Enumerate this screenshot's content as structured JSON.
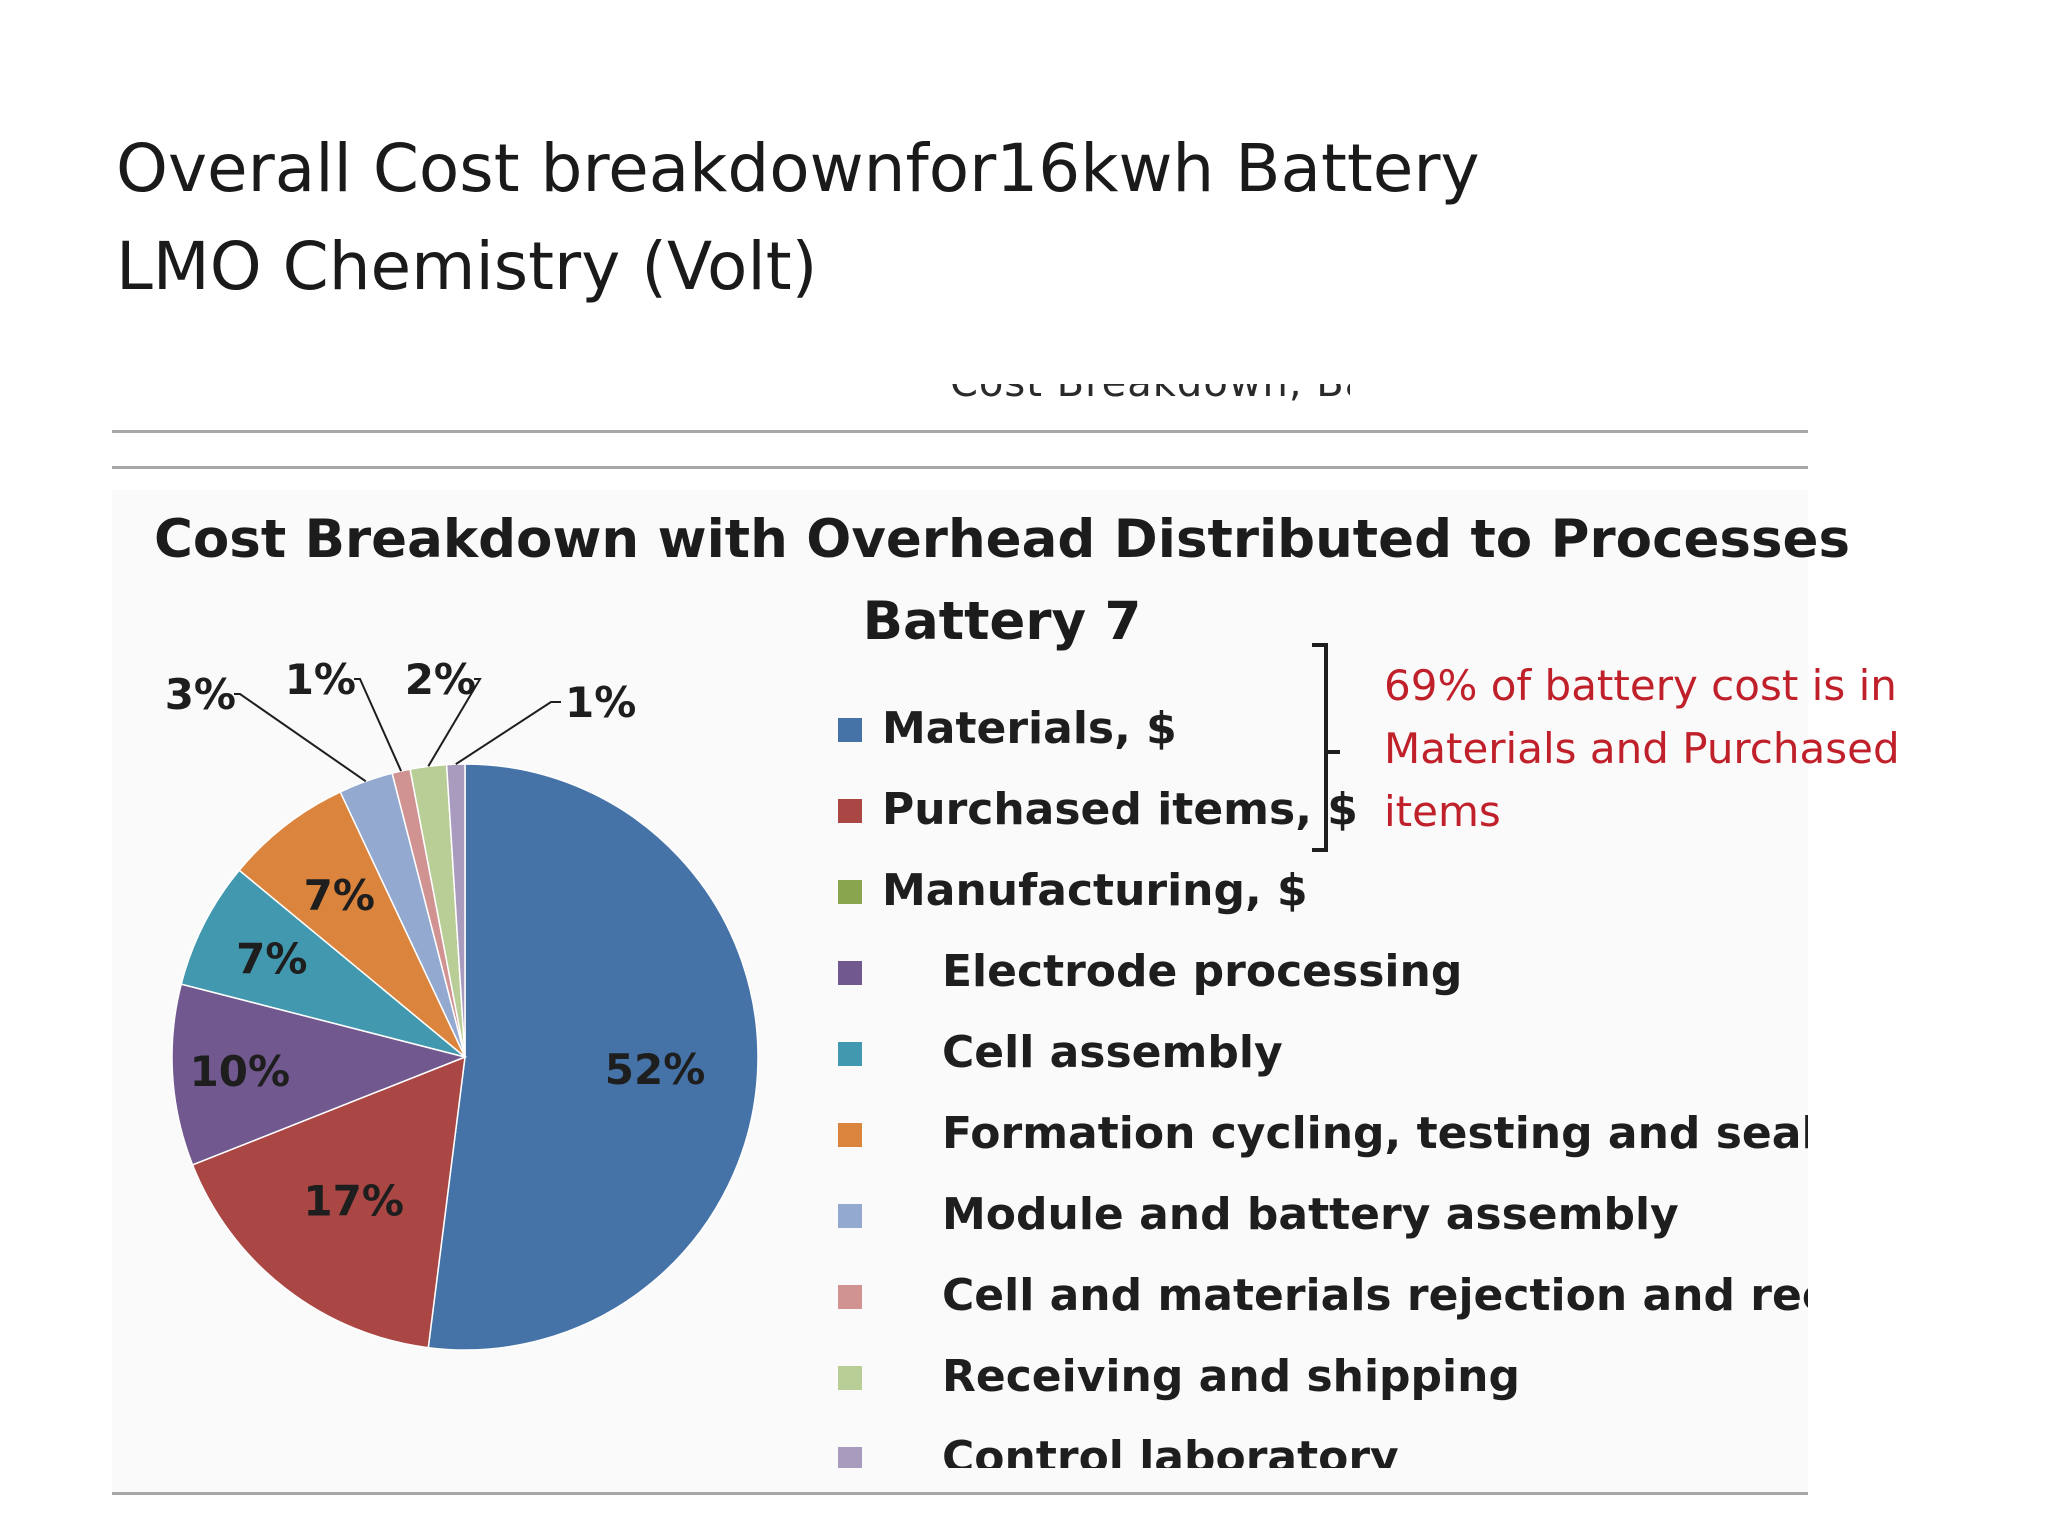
{
  "slide": {
    "title_line1": "Overall Cost breakdownfor16kwh  Battery",
    "title_line2": "LMO Chemistry (Volt)",
    "cut_text": "Cost Breakdown, Battery"
  },
  "chart_data": {
    "type": "pie",
    "title": "Cost Breakdown with Overhead Distributed to Processes",
    "subtitle": "Battery 7",
    "slices": [
      {
        "name": "Materials, $",
        "value": 52,
        "label": "52%",
        "color": "#4572a7"
      },
      {
        "name": "Purchased items, $",
        "value": 17,
        "label": "17%",
        "color": "#aa4643"
      },
      {
        "name": "Manufacturing, $",
        "value": 0,
        "label": "",
        "color": "#89a54e"
      },
      {
        "name": "Electrode processing",
        "value": 10,
        "label": "10%",
        "color": "#71588f"
      },
      {
        "name": "Cell assembly",
        "value": 7,
        "label": "7%",
        "color": "#4198af"
      },
      {
        "name": "Formation cycling, testing and sealing",
        "value": 7,
        "label": "7%",
        "color": "#db843d"
      },
      {
        "name": "Module and battery assembly",
        "value": 3,
        "label": "3%",
        "color": "#93a9cf"
      },
      {
        "name": "Cell and materials rejection and recycli",
        "value": 1,
        "label": "1%",
        "color": "#d19392"
      },
      {
        "name": "Receiving and shipping",
        "value": 2,
        "label": "2%",
        "color": "#b9cd96"
      },
      {
        "name": "Control laboratory",
        "value": 1,
        "label": "1%",
        "color": "#a99bbd"
      }
    ],
    "legend_position": "right"
  },
  "annotation": {
    "line1": "69% of battery cost is in",
    "line2": "Materials and Purchased",
    "line3": "items",
    "color": "#c0202a"
  }
}
